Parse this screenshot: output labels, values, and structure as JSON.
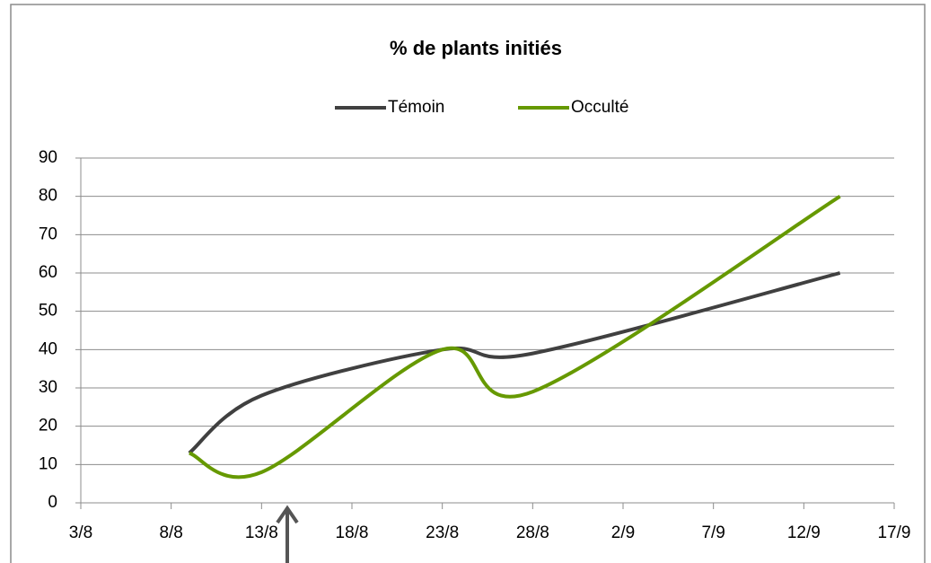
{
  "chart_data": {
    "type": "line",
    "title": "% de plants initiés",
    "x": [
      "9/8",
      "13/8",
      "23/8",
      "28/8",
      "14/9"
    ],
    "series": [
      {
        "name": "Témoin",
        "color": "#404040",
        "values": [
          13,
          28,
          40,
          39,
          60
        ]
      },
      {
        "name": "Occulté",
        "color": "#669900",
        "values": [
          13,
          8,
          40,
          29,
          80
        ]
      }
    ],
    "xlim": [
      "3/8",
      "17/9"
    ],
    "xticks": [
      "3/8",
      "8/8",
      "13/8",
      "18/8",
      "23/8",
      "28/8",
      "2/9",
      "7/9",
      "12/9",
      "17/9"
    ],
    "ylim": [
      0,
      90
    ],
    "yticks": [
      0,
      10,
      20,
      30,
      40,
      50,
      60,
      70,
      80,
      90
    ],
    "grid": true,
    "legend": "top",
    "smooth": true
  }
}
